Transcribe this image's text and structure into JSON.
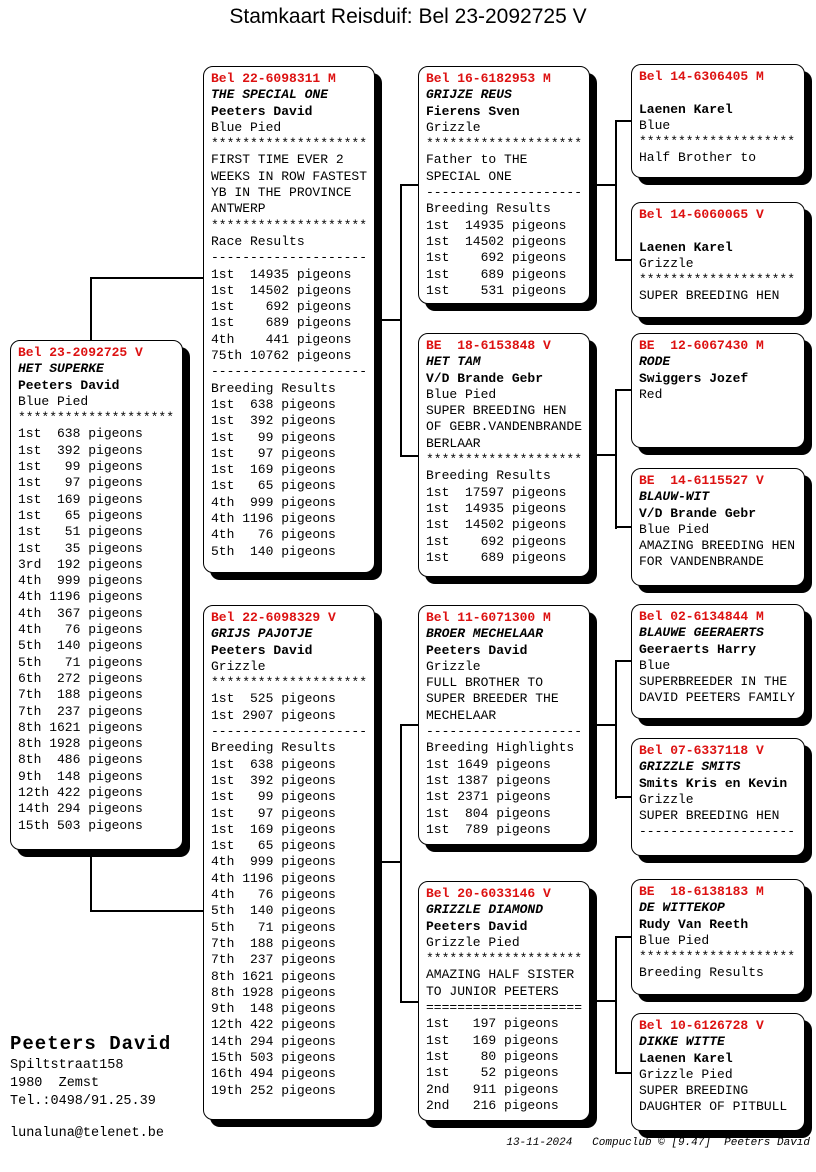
{
  "title": "Stamkaart Reisduif: Bel 23-2092725 V",
  "colors": {
    "ring_red": "#dd1111",
    "text": "#000000",
    "background": "#ffffff"
  },
  "breeder": {
    "name": "Peeters David",
    "street": "Spiltstraat158",
    "city": "1980  Zemst",
    "phone": "Tel.:0498/91.25.39",
    "email": "lunaluna@telenet.be"
  },
  "footer": "13-11-2024   Compuclub © [9.47]  Peeters David",
  "boxes": [
    {
      "relation": "subject",
      "ring": "Bel 23-2092725 V",
      "lines": [
        {
          "text": "Bel 23-2092725 V",
          "style": "ring"
        },
        {
          "text": "HET SUPERKE",
          "style": "name"
        },
        {
          "text": "Peeters David",
          "style": "fancier"
        },
        {
          "text": "Blue Pied",
          "style": "plain"
        },
        {
          "text": "********************",
          "style": "plain"
        },
        {
          "text": "1st  638 pigeons",
          "style": "plain"
        },
        {
          "text": "1st  392 pigeons",
          "style": "plain"
        },
        {
          "text": "1st   99 pigeons",
          "style": "plain"
        },
        {
          "text": "1st   97 pigeons",
          "style": "plain"
        },
        {
          "text": "1st  169 pigeons",
          "style": "plain"
        },
        {
          "text": "1st   65 pigeons",
          "style": "plain"
        },
        {
          "text": "1st   51 pigeons",
          "style": "plain"
        },
        {
          "text": "1st   35 pigeons",
          "style": "plain"
        },
        {
          "text": "3rd  192 pigeons",
          "style": "plain"
        },
        {
          "text": "4th  999 pigeons",
          "style": "plain"
        },
        {
          "text": "4th 1196 pigeons",
          "style": "plain"
        },
        {
          "text": "4th  367 pigeons",
          "style": "plain"
        },
        {
          "text": "4th   76 pigeons",
          "style": "plain"
        },
        {
          "text": "5th  140 pigeons",
          "style": "plain"
        },
        {
          "text": "5th   71 pigeons",
          "style": "plain"
        },
        {
          "text": "6th  272 pigeons",
          "style": "plain"
        },
        {
          "text": "7th  188 pigeons",
          "style": "plain"
        },
        {
          "text": "7th  237 pigeons",
          "style": "plain"
        },
        {
          "text": "8th 1621 pigeons",
          "style": "plain"
        },
        {
          "text": "8th 1928 pigeons",
          "style": "plain"
        },
        {
          "text": "8th  486 pigeons",
          "style": "plain"
        },
        {
          "text": "9th  148 pigeons",
          "style": "plain"
        },
        {
          "text": "12th 422 pigeons",
          "style": "plain"
        },
        {
          "text": "14th 294 pigeons",
          "style": "plain"
        },
        {
          "text": "15th 503 pigeons",
          "style": "plain"
        }
      ]
    },
    {
      "relation": "sire",
      "ring": "Bel 22-6098311 M",
      "lines": [
        {
          "text": "Bel 22-6098311 M",
          "style": "ring"
        },
        {
          "text": "THE SPECIAL ONE",
          "style": "name"
        },
        {
          "text": "Peeters David",
          "style": "fancier"
        },
        {
          "text": "Blue Pied",
          "style": "plain"
        },
        {
          "text": "********************",
          "style": "plain"
        },
        {
          "text": "FIRST TIME EVER 2",
          "style": "plain"
        },
        {
          "text": "WEEKS IN ROW FASTEST",
          "style": "plain"
        },
        {
          "text": "YB IN THE PROVINCE",
          "style": "plain"
        },
        {
          "text": "ANTWERP",
          "style": "plain"
        },
        {
          "text": "********************",
          "style": "plain"
        },
        {
          "text": "Race Results",
          "style": "plain"
        },
        {
          "text": "--------------------",
          "style": "plain"
        },
        {
          "text": "1st  14935 pigeons",
          "style": "plain"
        },
        {
          "text": "1st  14502 pigeons",
          "style": "plain"
        },
        {
          "text": "1st    692 pigeons",
          "style": "plain"
        },
        {
          "text": "1st    689 pigeons",
          "style": "plain"
        },
        {
          "text": "4th    441 pigeons",
          "style": "plain"
        },
        {
          "text": "75th 10762 pigeons",
          "style": "plain"
        },
        {
          "text": "--------------------",
          "style": "plain"
        },
        {
          "text": "Breeding Results",
          "style": "plain"
        },
        {
          "text": "1st  638 pigeons",
          "style": "plain"
        },
        {
          "text": "1st  392 pigeons",
          "style": "plain"
        },
        {
          "text": "1st   99 pigeons",
          "style": "plain"
        },
        {
          "text": "1st   97 pigeons",
          "style": "plain"
        },
        {
          "text": "1st  169 pigeons",
          "style": "plain"
        },
        {
          "text": "1st   65 pigeons",
          "style": "plain"
        },
        {
          "text": "4th  999 pigeons",
          "style": "plain"
        },
        {
          "text": "4th 1196 pigeons",
          "style": "plain"
        },
        {
          "text": "4th   76 pigeons",
          "style": "plain"
        },
        {
          "text": "5th  140 pigeons",
          "style": "plain"
        }
      ]
    },
    {
      "relation": "dam",
      "ring": "Bel 22-6098329 V",
      "lines": [
        {
          "text": "Bel 22-6098329 V",
          "style": "ring"
        },
        {
          "text": "GRIJS PAJOTJE",
          "style": "name"
        },
        {
          "text": "Peeters David",
          "style": "fancier"
        },
        {
          "text": "Grizzle",
          "style": "plain"
        },
        {
          "text": "********************",
          "style": "plain"
        },
        {
          "text": "1st  525 pigeons",
          "style": "plain"
        },
        {
          "text": "1st 2907 pigeons",
          "style": "plain"
        },
        {
          "text": "--------------------",
          "style": "plain"
        },
        {
          "text": "Breeding Results",
          "style": "plain"
        },
        {
          "text": "1st  638 pigeons",
          "style": "plain"
        },
        {
          "text": "1st  392 pigeons",
          "style": "plain"
        },
        {
          "text": "1st   99 pigeons",
          "style": "plain"
        },
        {
          "text": "1st   97 pigeons",
          "style": "plain"
        },
        {
          "text": "1st  169 pigeons",
          "style": "plain"
        },
        {
          "text": "1st   65 pigeons",
          "style": "plain"
        },
        {
          "text": "4th  999 pigeons",
          "style": "plain"
        },
        {
          "text": "4th 1196 pigeons",
          "style": "plain"
        },
        {
          "text": "4th   76 pigeons",
          "style": "plain"
        },
        {
          "text": "5th  140 pigeons",
          "style": "plain"
        },
        {
          "text": "5th   71 pigeons",
          "style": "plain"
        },
        {
          "text": "7th  188 pigeons",
          "style": "plain"
        },
        {
          "text": "7th  237 pigeons",
          "style": "plain"
        },
        {
          "text": "8th 1621 pigeons",
          "style": "plain"
        },
        {
          "text": "8th 1928 pigeons",
          "style": "plain"
        },
        {
          "text": "9th  148 pigeons",
          "style": "plain"
        },
        {
          "text": "12th 422 pigeons",
          "style": "plain"
        },
        {
          "text": "14th 294 pigeons",
          "style": "plain"
        },
        {
          "text": "15th 503 pigeons",
          "style": "plain"
        },
        {
          "text": "16th 494 pigeons",
          "style": "plain"
        },
        {
          "text": "19th 252 pigeons",
          "style": "plain"
        }
      ]
    },
    {
      "relation": "sire-sire",
      "ring": "Bel 16-6182953 M",
      "lines": [
        {
          "text": "Bel 16-6182953 M",
          "style": "ring"
        },
        {
          "text": "GRIJZE REUS",
          "style": "name"
        },
        {
          "text": "Fierens Sven",
          "style": "fancier"
        },
        {
          "text": "Grizzle",
          "style": "plain"
        },
        {
          "text": "********************",
          "style": "plain"
        },
        {
          "text": "Father to THE",
          "style": "plain"
        },
        {
          "text": "SPECIAL ONE",
          "style": "plain"
        },
        {
          "text": "--------------------",
          "style": "plain"
        },
        {
          "text": "Breeding Results",
          "style": "plain"
        },
        {
          "text": "1st  14935 pigeons",
          "style": "plain"
        },
        {
          "text": "1st  14502 pigeons",
          "style": "plain"
        },
        {
          "text": "1st    692 pigeons",
          "style": "plain"
        },
        {
          "text": "1st    689 pigeons",
          "style": "plain"
        },
        {
          "text": "1st    531 pigeons",
          "style": "plain"
        }
      ]
    },
    {
      "relation": "sire-dam",
      "ring": "BE 18-6153848 V",
      "lines": [
        {
          "text": "BE  18-6153848 V",
          "style": "ring"
        },
        {
          "text": "HET TAM",
          "style": "name"
        },
        {
          "text": "V/D Brande Gebr",
          "style": "fancier"
        },
        {
          "text": "Blue Pied",
          "style": "plain"
        },
        {
          "text": "SUPER BREEDING HEN",
          "style": "plain"
        },
        {
          "text": "OF GEBR.VANDENBRANDE",
          "style": "plain"
        },
        {
          "text": "BERLAAR",
          "style": "plain"
        },
        {
          "text": "********************",
          "style": "plain"
        },
        {
          "text": "Breeding Results",
          "style": "plain"
        },
        {
          "text": "1st  17597 pigeons",
          "style": "plain"
        },
        {
          "text": "1st  14935 pigeons",
          "style": "plain"
        },
        {
          "text": "1st  14502 pigeons",
          "style": "plain"
        },
        {
          "text": "1st    692 pigeons",
          "style": "plain"
        },
        {
          "text": "1st    689 pigeons",
          "style": "plain"
        }
      ]
    },
    {
      "relation": "dam-sire",
      "ring": "Bel 11-6071300 M",
      "lines": [
        {
          "text": "Bel 11-6071300 M",
          "style": "ring"
        },
        {
          "text": "BROER MECHELAAR",
          "style": "name"
        },
        {
          "text": "Peeters David",
          "style": "fancier"
        },
        {
          "text": "Grizzle",
          "style": "plain"
        },
        {
          "text": "FULL BROTHER TO",
          "style": "plain"
        },
        {
          "text": "SUPER BREEDER THE",
          "style": "plain"
        },
        {
          "text": "MECHELAAR",
          "style": "plain"
        },
        {
          "text": "--------------------",
          "style": "plain"
        },
        {
          "text": "Breeding Highlights",
          "style": "plain"
        },
        {
          "text": "1st 1649 pigeons",
          "style": "plain"
        },
        {
          "text": "1st 1387 pigeons",
          "style": "plain"
        },
        {
          "text": "1st 2371 pigeons",
          "style": "plain"
        },
        {
          "text": "1st  804 pigeons",
          "style": "plain"
        },
        {
          "text": "1st  789 pigeons",
          "style": "plain"
        }
      ]
    },
    {
      "relation": "dam-dam",
      "ring": "Bel 20-6033146 V",
      "lines": [
        {
          "text": "Bel 20-6033146 V",
          "style": "ring"
        },
        {
          "text": "GRIZZLE DIAMOND",
          "style": "name"
        },
        {
          "text": "Peeters David",
          "style": "fancier"
        },
        {
          "text": "Grizzle Pied",
          "style": "plain"
        },
        {
          "text": "********************",
          "style": "plain"
        },
        {
          "text": "AMAZING HALF SISTER",
          "style": "plain"
        },
        {
          "text": "TO JUNIOR PEETERS",
          "style": "plain"
        },
        {
          "text": "====================",
          "style": "plain"
        },
        {
          "text": "1st   197 pigeons",
          "style": "plain"
        },
        {
          "text": "1st   169 pigeons",
          "style": "plain"
        },
        {
          "text": "1st    80 pigeons",
          "style": "plain"
        },
        {
          "text": "1st    52 pigeons",
          "style": "plain"
        },
        {
          "text": "2nd   911 pigeons",
          "style": "plain"
        },
        {
          "text": "2nd   216 pigeons",
          "style": "plain"
        }
      ]
    },
    {
      "relation": "sire-sire-sire",
      "ring": "Bel 14-6306405 M",
      "lines": [
        {
          "text": "Bel 14-6306405 M",
          "style": "ring"
        },
        {
          "text": " ",
          "style": "plain"
        },
        {
          "text": "Laenen Karel",
          "style": "fancier"
        },
        {
          "text": "Blue",
          "style": "plain"
        },
        {
          "text": "********************",
          "style": "plain"
        },
        {
          "text": "Half Brother to",
          "style": "plain"
        }
      ]
    },
    {
      "relation": "sire-sire-dam",
      "ring": "Bel 14-6060065 V",
      "lines": [
        {
          "text": "Bel 14-6060065 V",
          "style": "ring"
        },
        {
          "text": " ",
          "style": "plain"
        },
        {
          "text": "Laenen Karel",
          "style": "fancier"
        },
        {
          "text": "Grizzle",
          "style": "plain"
        },
        {
          "text": "********************",
          "style": "plain"
        },
        {
          "text": "SUPER BREEDING HEN",
          "style": "plain"
        }
      ]
    },
    {
      "relation": "sire-dam-sire",
      "ring": "BE 12-6067430 M",
      "lines": [
        {
          "text": "BE  12-6067430 M",
          "style": "ring"
        },
        {
          "text": "RODE",
          "style": "name"
        },
        {
          "text": "Swiggers Jozef",
          "style": "fancier"
        },
        {
          "text": "Red",
          "style": "plain"
        }
      ]
    },
    {
      "relation": "sire-dam-dam",
      "ring": "BE 14-6115527 V",
      "lines": [
        {
          "text": "BE  14-6115527 V",
          "style": "ring"
        },
        {
          "text": "BLAUW-WIT",
          "style": "name"
        },
        {
          "text": "V/D Brande Gebr",
          "style": "fancier"
        },
        {
          "text": "Blue Pied",
          "style": "plain"
        },
        {
          "text": "AMAZING BREEDING HEN",
          "style": "plain"
        },
        {
          "text": "FOR VANDENBRANDE",
          "style": "plain"
        }
      ]
    },
    {
      "relation": "dam-sire-sire",
      "ring": "Bel 02-6134844 M",
      "lines": [
        {
          "text": "Bel 02-6134844 M",
          "style": "ring"
        },
        {
          "text": "BLAUWE GEERAERTS",
          "style": "name"
        },
        {
          "text": "Geeraerts Harry",
          "style": "fancier"
        },
        {
          "text": "Blue",
          "style": "plain"
        },
        {
          "text": "SUPERBREEDER IN THE",
          "style": "plain"
        },
        {
          "text": "DAVID PEETERS FAMILY",
          "style": "plain"
        }
      ]
    },
    {
      "relation": "dam-sire-dam",
      "ring": "Bel 07-6337118 V",
      "lines": [
        {
          "text": "Bel 07-6337118 V",
          "style": "ring"
        },
        {
          "text": "GRIZZLE SMITS",
          "style": "name"
        },
        {
          "text": "Smits Kris en Kevin",
          "style": "fancier"
        },
        {
          "text": "Grizzle",
          "style": "plain"
        },
        {
          "text": "SUPER BREEDING HEN",
          "style": "plain"
        },
        {
          "text": "--------------------",
          "style": "plain"
        }
      ]
    },
    {
      "relation": "dam-dam-sire",
      "ring": "BE 18-6138183 M",
      "lines": [
        {
          "text": "BE  18-6138183 M",
          "style": "ring"
        },
        {
          "text": "DE WITTEKOP",
          "style": "name"
        },
        {
          "text": "Rudy Van Reeth",
          "style": "fancier"
        },
        {
          "text": "Blue Pied",
          "style": "plain"
        },
        {
          "text": "********************",
          "style": "plain"
        },
        {
          "text": "Breeding Results",
          "style": "plain"
        }
      ]
    },
    {
      "relation": "dam-dam-dam",
      "ring": "Bel 10-6126728 V",
      "lines": [
        {
          "text": "Bel 10-6126728 V",
          "style": "ring"
        },
        {
          "text": "DIKKE WITTE",
          "style": "name"
        },
        {
          "text": "Laenen Karel",
          "style": "fancier"
        },
        {
          "text": "Grizzle Pied",
          "style": "plain"
        },
        {
          "text": "SUPER BREEDING",
          "style": "plain"
        },
        {
          "text": "DAUGHTER OF PITBULL",
          "style": "plain"
        }
      ]
    }
  ]
}
